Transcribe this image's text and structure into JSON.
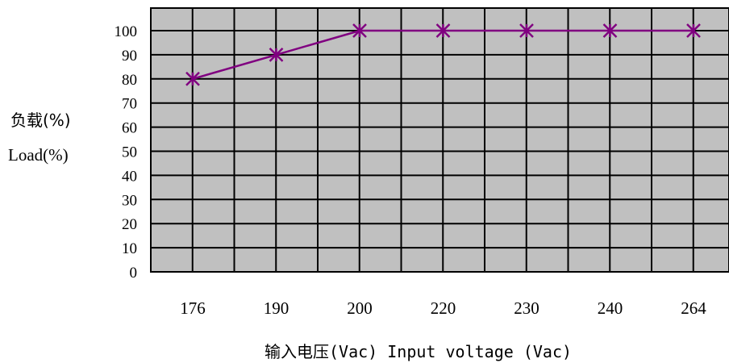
{
  "chart_data": {
    "type": "line",
    "categories": [
      "176",
      "190",
      "200",
      "220",
      "230",
      "240",
      "264"
    ],
    "values": [
      80,
      90,
      100,
      100,
      100,
      100,
      100
    ],
    "ylim": [
      0,
      100
    ],
    "y_ticks": [
      "0",
      "10",
      "20",
      "30",
      "40",
      "50",
      "60",
      "70",
      "80",
      "90",
      "100"
    ],
    "ylabel": [
      "负载(%)",
      "Load(%)"
    ],
    "xlabel": "输入电压(Vac) Input voltage (Vac)",
    "grid": true,
    "colors": {
      "plot_background": "#c0c0c0",
      "grid": "#000000",
      "series": "#800080"
    },
    "marker": "star"
  }
}
